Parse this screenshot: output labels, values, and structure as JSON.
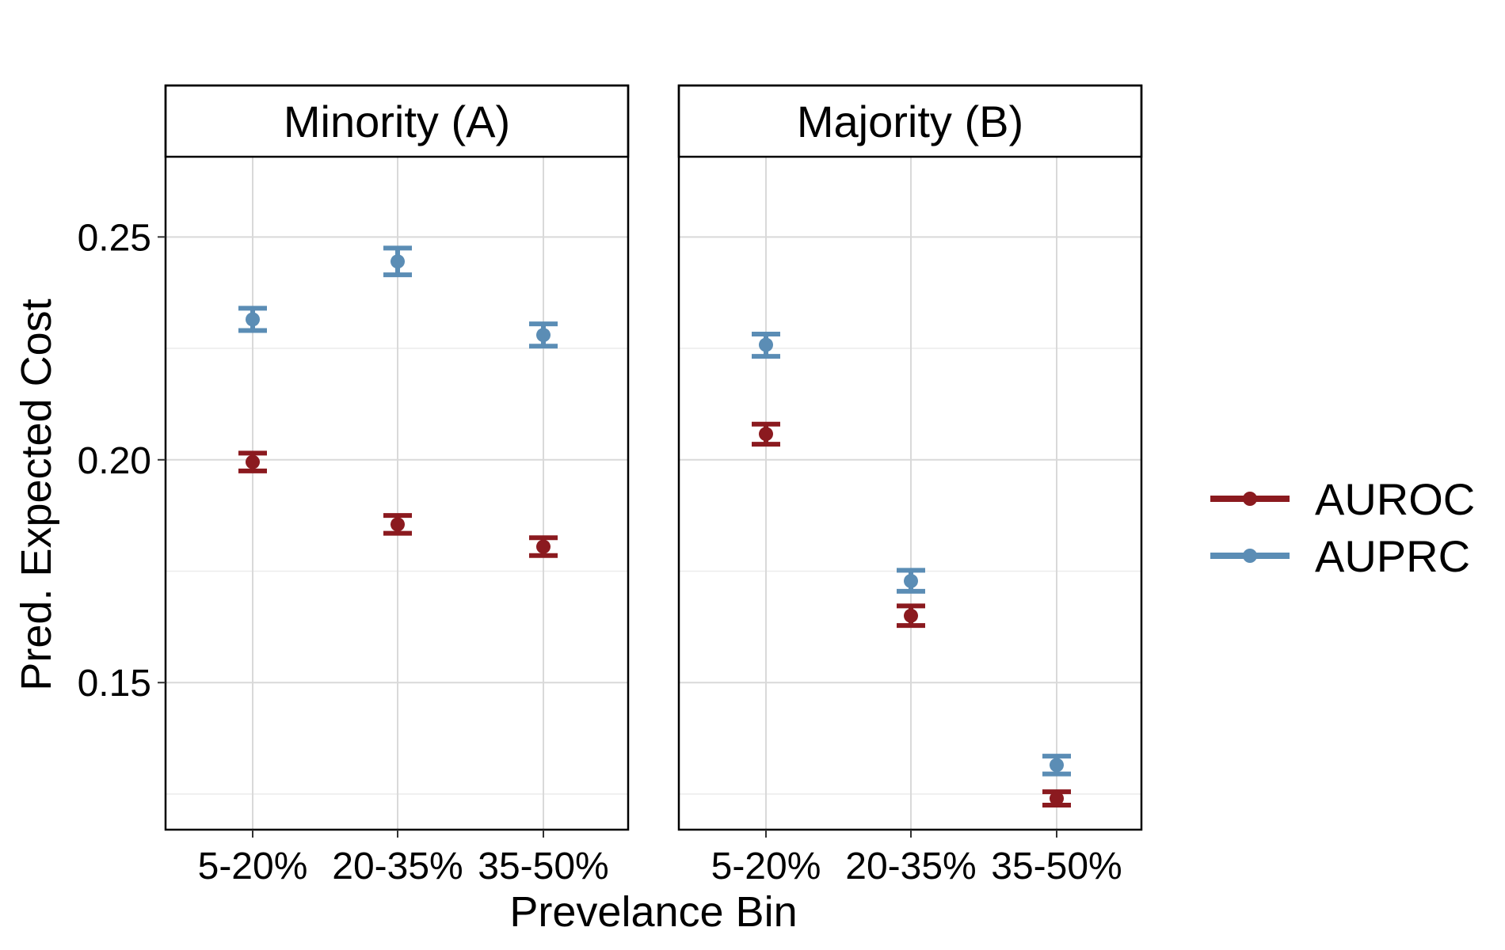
{
  "chart_data": {
    "type": "scatter",
    "xlabel": "Prevelance Bin",
    "ylabel": "Pred. Expected Cost",
    "categories": [
      "5-20%",
      "20-35%",
      "35-50%"
    ],
    "ylim": [
      0.117,
      0.268
    ],
    "yticks": [
      0.15,
      0.2,
      0.25
    ],
    "ytick_labels": [
      "0.15",
      "0.20",
      "0.25"
    ],
    "grid": true,
    "legend_position": "right",
    "colors": {
      "AUROC": "#8b1a1f",
      "AUPRC": "#5b8db5"
    },
    "legend": [
      {
        "name": "AUROC",
        "color": "#8b1a1f"
      },
      {
        "name": "AUPRC",
        "color": "#5b8db5"
      }
    ],
    "panels": [
      {
        "title": "Minority (A)",
        "series": [
          {
            "name": "AUROC",
            "values": [
              0.1995,
              0.1855,
              0.1805
            ],
            "lower": [
              0.1975,
              0.1835,
              0.1785
            ],
            "upper": [
              0.2015,
              0.1875,
              0.1825
            ]
          },
          {
            "name": "AUPRC",
            "values": [
              0.2315,
              0.2445,
              0.228
            ],
            "lower": [
              0.229,
              0.2415,
              0.2255
            ],
            "upper": [
              0.234,
              0.2475,
              0.2305
            ]
          }
        ]
      },
      {
        "title": "Majority (B)",
        "series": [
          {
            "name": "AUROC",
            "values": [
              0.2058,
              0.165,
              0.124
            ],
            "lower": [
              0.2035,
              0.1628,
              0.1225
            ],
            "upper": [
              0.208,
              0.1672,
              0.1255
            ]
          },
          {
            "name": "AUPRC",
            "values": [
              0.2258,
              0.1728,
              0.1315
            ],
            "lower": [
              0.2232,
              0.1705,
              0.1295
            ],
            "upper": [
              0.2282,
              0.1752,
              0.1335
            ]
          }
        ]
      }
    ]
  }
}
